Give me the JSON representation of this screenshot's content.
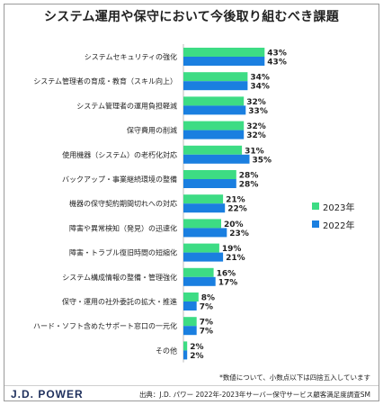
{
  "title": "システム運用や保守において今後取り組むべき課題",
  "chart_data": {
    "type": "bar",
    "orientation": "horizontal",
    "categories": [
      "システムセキュリティの強化",
      "システム管理者の育成・教育（スキル向上）",
      "システム管理者の運用負担軽減",
      "保守費用の削減",
      "使用機器（システム）の老朽化対応",
      "バックアップ・事業継続環境の整備",
      "機器の保守契約期間切れへの対応",
      "障害や異常検知（発見）の迅速化",
      "障害・トラブル復旧時間の短縮化",
      "システム構成情報の整備・管理強化",
      "保守・運用の社外委託の拡大・推進",
      "ハード・ソフト含めたサポート窓口の一元化",
      "その他"
    ],
    "series": [
      {
        "name": "2023年",
        "color": "#3ddc84",
        "values": [
          43,
          34,
          32,
          32,
          31,
          28,
          21,
          20,
          19,
          16,
          8,
          7,
          2
        ],
        "labels": [
          "43%",
          "34%",
          "32%",
          "32%",
          "31%",
          "28%",
          "21%",
          "20%",
          "19%",
          "16%",
          "8%",
          "7%",
          "2%"
        ]
      },
      {
        "name": "2022年",
        "color": "#1a7fe0",
        "values": [
          43,
          34,
          33,
          32,
          35,
          28,
          22,
          23,
          21,
          17,
          7,
          7,
          2
        ],
        "labels": [
          "43%",
          "34%",
          "33%",
          "32%",
          "35%",
          "28%",
          "22%",
          "23%",
          "21%",
          "17%",
          "7%",
          "7%",
          "2%"
        ]
      }
    ],
    "xlim": [
      0,
      50
    ],
    "grid": false,
    "legend_position": "right"
  },
  "legend": {
    "items": [
      {
        "label": "2023年",
        "color": "#3ddc84"
      },
      {
        "label": "2022年",
        "color": "#1a7fe0"
      }
    ]
  },
  "note": "*数値について、小数点以下は四捨五入しています",
  "logo": "J.D. POWER",
  "source": "出典：J.D. パワー 2022年-2023年サーバー保守サービス顧客満足度調査SM"
}
